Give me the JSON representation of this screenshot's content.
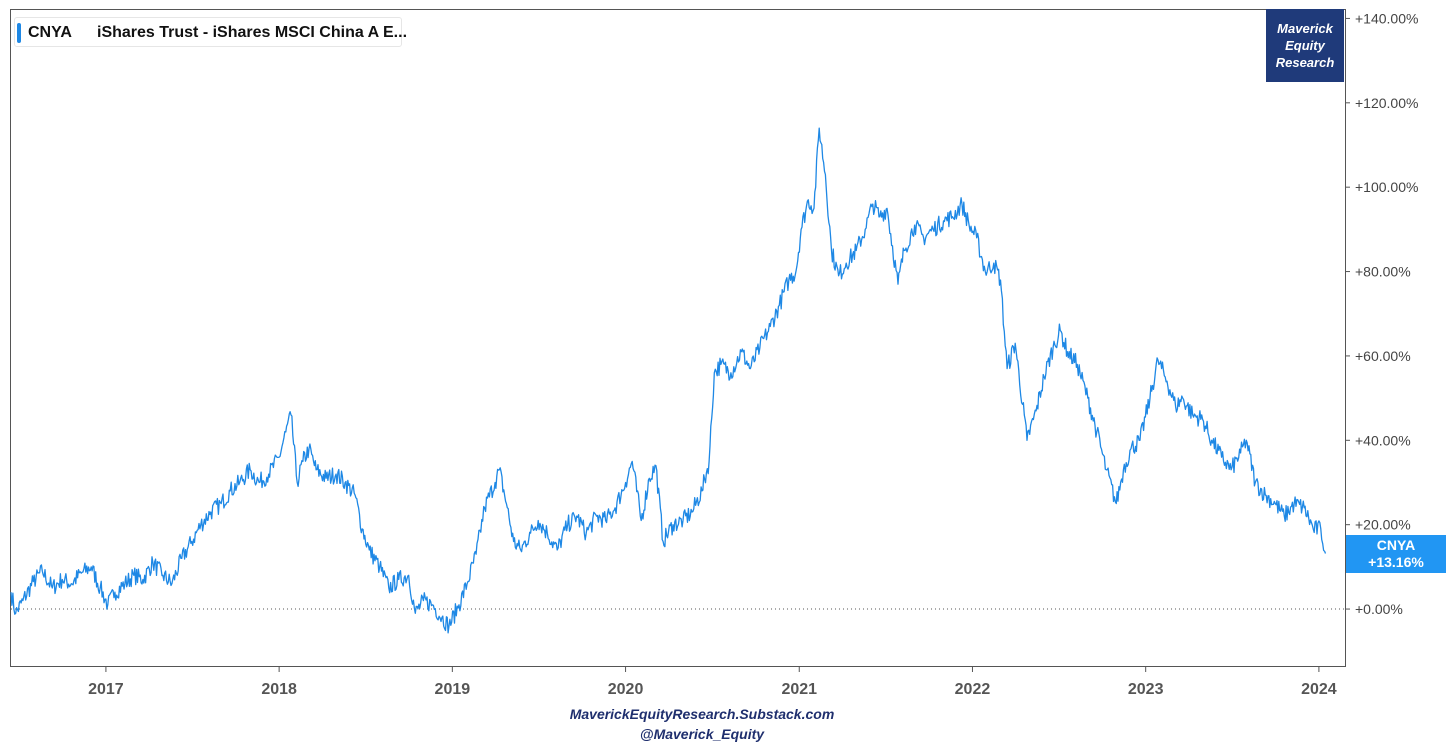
{
  "legend": {
    "symbol": "CNYA",
    "name": "iShares Trust - iShares MSCI China A E..."
  },
  "watermark": [
    "Maverick",
    "Equity",
    "Research"
  ],
  "last_value": {
    "symbol": "CNYA",
    "value_label": "+13.16%"
  },
  "footer": {
    "line1": "MaverickEquityResearch.Substack.com",
    "line2": "@Maverick_Equity"
  },
  "colors": {
    "line": "#1e88e5",
    "tag": "#2196f3",
    "brand": "#1f3a7a"
  },
  "chart_data": {
    "type": "line",
    "title": "",
    "xlabel": "",
    "ylabel": "",
    "x_ticks": [
      "2017",
      "2018",
      "2019",
      "2020",
      "2021",
      "2022",
      "2023",
      "2024"
    ],
    "y_ticks": [
      "+0.00%",
      "+20.00%",
      "+40.00%",
      "+60.00%",
      "+80.00%",
      "+100.00%",
      "+120.00%",
      "+140.00%"
    ],
    "xlim": [
      "2016-06-15",
      "2024-02-25"
    ],
    "ylim": [
      -13.5,
      142
    ],
    "zero_line": true,
    "series": [
      {
        "name": "CNYA",
        "points": [
          [
            "2016-06-15",
            4.0
          ],
          [
            "2016-06-25",
            -1.0
          ],
          [
            "2016-07-10",
            2.0
          ],
          [
            "2016-08-01",
            6.5
          ],
          [
            "2016-08-20",
            9.0
          ],
          [
            "2016-09-10",
            5.0
          ],
          [
            "2016-10-01",
            7.0
          ],
          [
            "2016-10-20",
            6.0
          ],
          [
            "2016-11-10",
            8.5
          ],
          [
            "2016-12-01",
            10.0
          ],
          [
            "2016-12-20",
            5.0
          ],
          [
            "2017-01-05",
            1.0
          ],
          [
            "2017-01-20",
            4.0
          ],
          [
            "2017-02-10",
            6.0
          ],
          [
            "2017-03-01",
            8.0
          ],
          [
            "2017-03-20",
            7.0
          ],
          [
            "2017-04-10",
            11.0
          ],
          [
            "2017-05-01",
            8.0
          ],
          [
            "2017-05-20",
            6.0
          ],
          [
            "2017-06-10",
            12.0
          ],
          [
            "2017-07-01",
            16.0
          ],
          [
            "2017-07-20",
            20.0
          ],
          [
            "2017-08-10",
            23.0
          ],
          [
            "2017-09-01",
            25.0
          ],
          [
            "2017-09-20",
            28.0
          ],
          [
            "2017-10-10",
            30.0
          ],
          [
            "2017-11-01",
            33.0
          ],
          [
            "2017-11-20",
            30.0
          ],
          [
            "2017-12-10",
            32.0
          ],
          [
            "2018-01-01",
            36.0
          ],
          [
            "2018-01-15",
            42.0
          ],
          [
            "2018-01-26",
            46.0
          ],
          [
            "2018-02-08",
            30.0
          ],
          [
            "2018-02-20",
            35.0
          ],
          [
            "2018-03-05",
            38.0
          ],
          [
            "2018-03-20",
            33.0
          ],
          [
            "2018-04-10",
            31.0
          ],
          [
            "2018-05-01",
            32.0
          ],
          [
            "2018-05-20",
            30.0
          ],
          [
            "2018-06-10",
            27.0
          ],
          [
            "2018-06-25",
            19.0
          ],
          [
            "2018-07-10",
            14.0
          ],
          [
            "2018-08-01",
            10.0
          ],
          [
            "2018-08-20",
            5.0
          ],
          [
            "2018-09-10",
            7.0
          ],
          [
            "2018-10-01",
            8.0
          ],
          [
            "2018-10-15",
            -1.0
          ],
          [
            "2018-11-01",
            2.0
          ],
          [
            "2018-11-20",
            1.0
          ],
          [
            "2018-12-10",
            -2.0
          ],
          [
            "2018-12-25",
            -4.0
          ],
          [
            "2019-01-15",
            1.0
          ],
          [
            "2019-02-01",
            6.0
          ],
          [
            "2019-02-20",
            13.0
          ],
          [
            "2019-03-10",
            24.0
          ],
          [
            "2019-04-01",
            30.0
          ],
          [
            "2019-04-10",
            33.0
          ],
          [
            "2019-04-25",
            25.0
          ],
          [
            "2019-05-10",
            16.0
          ],
          [
            "2019-05-25",
            14.0
          ],
          [
            "2019-06-15",
            18.0
          ],
          [
            "2019-07-01",
            21.0
          ],
          [
            "2019-07-20",
            18.0
          ],
          [
            "2019-08-10",
            14.0
          ],
          [
            "2019-09-01",
            20.0
          ],
          [
            "2019-09-20",
            22.0
          ],
          [
            "2019-10-10",
            18.0
          ],
          [
            "2019-11-01",
            22.0
          ],
          [
            "2019-11-20",
            21.0
          ],
          [
            "2019-12-10",
            24.0
          ],
          [
            "2020-01-01",
            30.0
          ],
          [
            "2020-01-15",
            35.0
          ],
          [
            "2020-02-03",
            21.0
          ],
          [
            "2020-02-20",
            31.0
          ],
          [
            "2020-03-05",
            34.0
          ],
          [
            "2020-03-20",
            16.0
          ],
          [
            "2020-04-10",
            20.0
          ],
          [
            "2020-05-01",
            21.0
          ],
          [
            "2020-05-20",
            23.0
          ],
          [
            "2020-06-10",
            28.0
          ],
          [
            "2020-06-25",
            35.0
          ],
          [
            "2020-07-06",
            56.0
          ],
          [
            "2020-07-20",
            58.0
          ],
          [
            "2020-08-10",
            56.0
          ],
          [
            "2020-09-01",
            61.0
          ],
          [
            "2020-09-20",
            57.0
          ],
          [
            "2020-10-10",
            62.0
          ],
          [
            "2020-11-01",
            67.0
          ],
          [
            "2020-11-20",
            72.0
          ],
          [
            "2020-12-10",
            78.0
          ],
          [
            "2020-12-25",
            80.0
          ],
          [
            "2021-01-05",
            90.0
          ],
          [
            "2021-01-20",
            97.0
          ],
          [
            "2021-02-01",
            95.0
          ],
          [
            "2021-02-12",
            114.0
          ],
          [
            "2021-02-25",
            103.0
          ],
          [
            "2021-03-10",
            85.0
          ],
          [
            "2021-03-25",
            79.0
          ],
          [
            "2021-04-10",
            82.0
          ],
          [
            "2021-05-01",
            85.0
          ],
          [
            "2021-05-20",
            90.0
          ],
          [
            "2021-06-05",
            96.0
          ],
          [
            "2021-06-20",
            93.0
          ],
          [
            "2021-07-05",
            95.0
          ],
          [
            "2021-07-28",
            77.0
          ],
          [
            "2021-08-10",
            85.0
          ],
          [
            "2021-09-01",
            91.0
          ],
          [
            "2021-09-20",
            88.0
          ],
          [
            "2021-10-10",
            90.0
          ],
          [
            "2021-11-01",
            92.0
          ],
          [
            "2021-11-20",
            93.0
          ],
          [
            "2021-12-10",
            96.0
          ],
          [
            "2021-12-25",
            91.0
          ],
          [
            "2022-01-10",
            88.0
          ],
          [
            "2022-01-28",
            80.0
          ],
          [
            "2022-02-15",
            82.0
          ],
          [
            "2022-03-01",
            78.0
          ],
          [
            "2022-03-15",
            57.0
          ],
          [
            "2022-04-01",
            63.0
          ],
          [
            "2022-04-26",
            40.0
          ],
          [
            "2022-05-15",
            47.0
          ],
          [
            "2022-06-01",
            55.0
          ],
          [
            "2022-06-20",
            62.0
          ],
          [
            "2022-07-05",
            66.0
          ],
          [
            "2022-07-20",
            61.0
          ],
          [
            "2022-08-10",
            58.0
          ],
          [
            "2022-09-01",
            50.0
          ],
          [
            "2022-09-20",
            42.0
          ],
          [
            "2022-10-10",
            33.0
          ],
          [
            "2022-10-31",
            25.0
          ],
          [
            "2022-11-15",
            33.0
          ],
          [
            "2022-12-01",
            38.0
          ],
          [
            "2022-12-20",
            40.0
          ],
          [
            "2023-01-10",
            50.0
          ],
          [
            "2023-01-27",
            59.0
          ],
          [
            "2023-02-15",
            54.0
          ],
          [
            "2023-03-05",
            48.0
          ],
          [
            "2023-03-20",
            50.0
          ],
          [
            "2023-04-10",
            46.0
          ],
          [
            "2023-05-01",
            45.0
          ],
          [
            "2023-05-20",
            40.0
          ],
          [
            "2023-06-10",
            36.0
          ],
          [
            "2023-06-30",
            33.0
          ],
          [
            "2023-07-20",
            37.0
          ],
          [
            "2023-08-01",
            40.0
          ],
          [
            "2023-08-20",
            30.0
          ],
          [
            "2023-09-10",
            27.0
          ],
          [
            "2023-10-01",
            25.0
          ],
          [
            "2023-10-20",
            22.0
          ],
          [
            "2023-11-10",
            25.0
          ],
          [
            "2023-12-01",
            24.0
          ],
          [
            "2023-12-20",
            19.0
          ],
          [
            "2024-01-05",
            19.0
          ],
          [
            "2024-01-15",
            13.16
          ]
        ]
      }
    ]
  }
}
